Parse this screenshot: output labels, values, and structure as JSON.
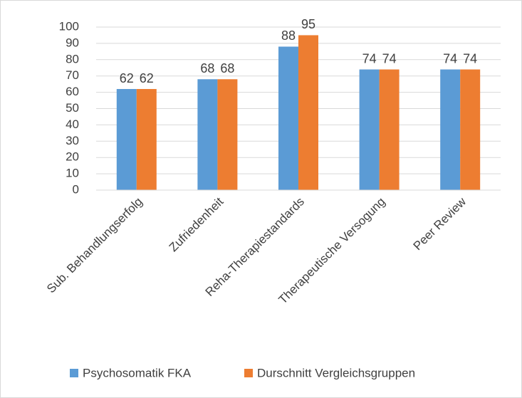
{
  "chart_data": {
    "type": "bar",
    "categories": [
      "Sub. Behandlungserfolg",
      "Zufriedenheit",
      "Reha-Therapiestandards",
      "Therapeutische Versogung",
      "Peer Review"
    ],
    "series": [
      {
        "name": "Psychosomatik FKA",
        "color": "#5b9bd5",
        "values": [
          62,
          68,
          88,
          74,
          74
        ]
      },
      {
        "name": "Durschnitt Vergleichsgruppen",
        "color": "#ed7d31",
        "values": [
          62,
          68,
          95,
          74,
          74
        ]
      }
    ],
    "ylim": [
      0,
      100
    ],
    "yticks": [
      0,
      10,
      20,
      30,
      40,
      50,
      60,
      70,
      80,
      90,
      100
    ],
    "grid": true,
    "legend": "bottom"
  }
}
